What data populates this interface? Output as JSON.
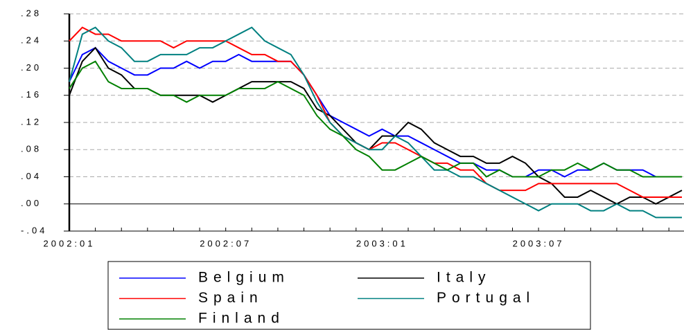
{
  "chart_data": {
    "type": "line",
    "categories": [
      "2002:01",
      null,
      null,
      null,
      null,
      null,
      null,
      null,
      null,
      null,
      null,
      null,
      "2002:07",
      null,
      null,
      null,
      null,
      null,
      null,
      null,
      null,
      null,
      null,
      null,
      "2003:01",
      null,
      null,
      null,
      null,
      null,
      null,
      null,
      null,
      null,
      null,
      null,
      "2003:07",
      null,
      null,
      null,
      null,
      null,
      null,
      null,
      null,
      null,
      null,
      null
    ],
    "series": [
      {
        "name": "Belgium",
        "color": "#0000ff",
        "values": [
          0.18,
          0.22,
          0.23,
          0.21,
          0.2,
          0.19,
          0.19,
          0.2,
          0.2,
          0.21,
          0.2,
          0.21,
          0.21,
          0.22,
          0.21,
          0.21,
          0.21,
          0.21,
          0.19,
          0.16,
          0.13,
          0.12,
          0.11,
          0.1,
          0.11,
          0.1,
          0.1,
          0.09,
          0.08,
          0.07,
          0.06,
          0.06,
          0.05,
          0.05,
          0.04,
          0.04,
          0.05,
          0.05,
          0.04,
          0.05,
          0.05,
          0.06,
          0.05,
          0.05,
          0.05,
          0.04,
          0.04,
          0.04
        ]
      },
      {
        "name": "Italy",
        "color": "#000000",
        "values": [
          0.16,
          0.21,
          0.23,
          0.2,
          0.19,
          0.17,
          0.17,
          0.16,
          0.16,
          0.16,
          0.16,
          0.15,
          0.16,
          0.17,
          0.18,
          0.18,
          0.18,
          0.18,
          0.17,
          0.14,
          0.13,
          0.11,
          0.09,
          0.08,
          0.1,
          0.1,
          0.12,
          0.11,
          0.09,
          0.08,
          0.07,
          0.07,
          0.06,
          0.06,
          0.07,
          0.06,
          0.04,
          0.03,
          0.01,
          0.01,
          0.02,
          0.01,
          0.0,
          0.01,
          0.01,
          0.0,
          0.01,
          0.02
        ]
      },
      {
        "name": "Spain",
        "color": "#ff0000",
        "values": [
          0.24,
          0.26,
          0.25,
          0.25,
          0.24,
          0.24,
          0.24,
          0.24,
          0.23,
          0.24,
          0.24,
          0.24,
          0.24,
          0.23,
          0.22,
          0.22,
          0.21,
          0.21,
          0.19,
          0.16,
          0.12,
          0.1,
          0.09,
          0.08,
          0.09,
          0.09,
          0.08,
          0.07,
          0.06,
          0.06,
          0.05,
          0.05,
          0.03,
          0.02,
          0.02,
          0.02,
          0.03,
          0.03,
          0.03,
          0.03,
          0.03,
          0.03,
          0.03,
          0.02,
          0.01,
          0.01,
          0.01,
          0.01
        ]
      },
      {
        "name": "Portugal",
        "color": "#008080",
        "values": [
          0.18,
          0.25,
          0.26,
          0.24,
          0.23,
          0.21,
          0.21,
          0.22,
          0.22,
          0.22,
          0.23,
          0.23,
          0.24,
          0.25,
          0.26,
          0.24,
          0.23,
          0.22,
          0.19,
          0.15,
          0.12,
          0.1,
          0.09,
          0.08,
          0.08,
          0.1,
          0.09,
          0.07,
          0.05,
          0.05,
          0.04,
          0.04,
          0.03,
          0.02,
          0.01,
          0.0,
          -0.01,
          0.0,
          0.0,
          0.0,
          -0.01,
          -0.01,
          0.0,
          -0.01,
          -0.01,
          -0.02,
          -0.02,
          -0.02
        ]
      },
      {
        "name": "Finland",
        "color": "#008000",
        "values": [
          0.17,
          0.2,
          0.21,
          0.18,
          0.17,
          0.17,
          0.17,
          0.16,
          0.16,
          0.15,
          0.16,
          0.16,
          0.16,
          0.17,
          0.17,
          0.17,
          0.18,
          0.17,
          0.16,
          0.13,
          0.11,
          0.1,
          0.08,
          0.07,
          0.05,
          0.05,
          0.06,
          0.07,
          0.06,
          0.05,
          0.06,
          0.06,
          0.04,
          0.05,
          0.04,
          0.04,
          0.04,
          0.05,
          0.05,
          0.06,
          0.05,
          0.06,
          0.05,
          0.05,
          0.04,
          0.04,
          0.04,
          0.04
        ]
      }
    ],
    "ylim": [
      -0.04,
      0.28
    ],
    "yticks": [
      {
        "value": -0.04,
        "label": "-.04"
      },
      {
        "value": 0,
        "label": ".00"
      },
      {
        "value": 0.04,
        "label": ".04"
      },
      {
        "value": 0.08,
        "label": ".08"
      },
      {
        "value": 0.12,
        "label": ".12"
      },
      {
        "value": 0.16,
        "label": ".16"
      },
      {
        "value": 0.2,
        "label": ".20"
      },
      {
        "value": 0.24,
        "label": ".24"
      },
      {
        "value": 0.28,
        "label": ".28"
      }
    ],
    "grid": true
  }
}
